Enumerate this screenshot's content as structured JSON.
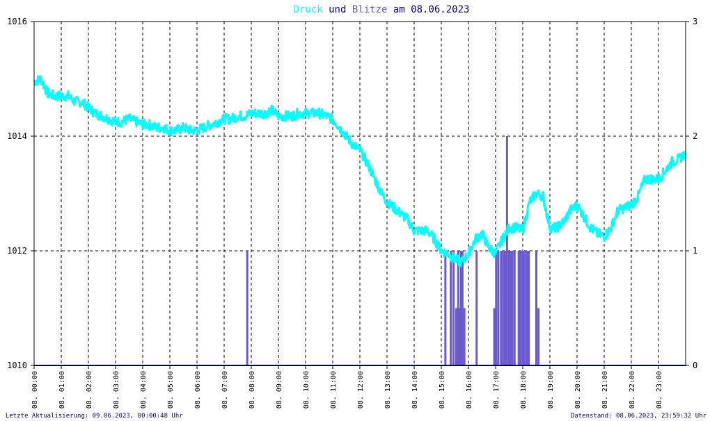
{
  "title": {
    "word1": "Druck",
    "word2": " und ",
    "word3": "Blitze",
    "word4": " am 08.06.2023",
    "colors": {
      "druck": "#00ffff",
      "blitze": "#6a5acd",
      "other": "#000080"
    }
  },
  "footer": {
    "left": "Letzte Aktualisierung: 09.06.2023, 00:00:48 Uhr",
    "right": "Datenstand: 08.06.2023, 23:59:32 Uhr"
  },
  "chart_data": {
    "type": "line",
    "title": "Druck und Blitze am 08.06.2023",
    "x_ticks": [
      "08. 00:00",
      "08. 01:00",
      "08. 02:00",
      "08. 03:00",
      "08. 04:00",
      "08. 05:00",
      "08. 06:00",
      "08. 07:00",
      "08. 08:00",
      "08. 09:00",
      "08. 10:00",
      "08. 11:00",
      "08. 12:00",
      "08. 13:00",
      "08. 14:00",
      "08. 15:00",
      "08. 16:00",
      "08. 17:00",
      "08. 18:00",
      "08. 19:00",
      "08. 20:00",
      "08. 21:00",
      "08. 22:00",
      "08. 23:00"
    ],
    "y_left": {
      "ylim": [
        1010,
        1016
      ],
      "ticks": [
        "1010",
        "1012",
        "1014",
        "1016"
      ]
    },
    "y_right": {
      "ylim": [
        0,
        3
      ],
      "ticks": [
        "0",
        "1",
        "2",
        "3"
      ]
    },
    "grid": true,
    "series": [
      {
        "name": "Druck",
        "axis": "left",
        "color": "#00ffff",
        "x_hours": [
          0.0,
          0.25,
          0.5,
          0.75,
          1.0,
          1.25,
          1.5,
          1.75,
          2.0,
          2.25,
          2.5,
          2.75,
          3.0,
          3.25,
          3.5,
          3.75,
          4.0,
          4.25,
          4.5,
          4.75,
          5.0,
          5.25,
          5.5,
          5.75,
          6.0,
          6.25,
          6.5,
          6.75,
          7.0,
          7.25,
          7.5,
          7.75,
          8.0,
          8.25,
          8.5,
          8.75,
          9.0,
          9.25,
          9.5,
          9.75,
          10.0,
          10.25,
          10.5,
          10.75,
          11.0,
          11.25,
          11.5,
          11.75,
          12.0,
          12.25,
          12.5,
          12.75,
          13.0,
          13.25,
          13.5,
          13.75,
          14.0,
          14.25,
          14.5,
          14.75,
          15.0,
          15.25,
          15.5,
          15.75,
          16.0,
          16.25,
          16.5,
          16.75,
          17.0,
          17.25,
          17.5,
          17.75,
          18.0,
          18.25,
          18.5,
          18.75,
          19.0,
          19.25,
          19.5,
          19.75,
          20.0,
          20.25,
          20.5,
          20.75,
          21.0,
          21.25,
          21.5,
          21.75,
          22.0,
          22.25,
          22.5,
          22.75,
          23.0,
          23.25,
          23.5,
          23.75,
          24.0
        ],
        "values": [
          1014.95,
          1015.0,
          1014.75,
          1014.7,
          1014.7,
          1014.7,
          1014.6,
          1014.6,
          1014.5,
          1014.4,
          1014.35,
          1014.3,
          1014.25,
          1014.25,
          1014.3,
          1014.25,
          1014.2,
          1014.2,
          1014.15,
          1014.15,
          1014.1,
          1014.1,
          1014.15,
          1014.1,
          1014.1,
          1014.15,
          1014.2,
          1014.25,
          1014.3,
          1014.3,
          1014.35,
          1014.35,
          1014.4,
          1014.4,
          1014.4,
          1014.45,
          1014.35,
          1014.35,
          1014.35,
          1014.4,
          1014.4,
          1014.4,
          1014.4,
          1014.35,
          1014.3,
          1014.15,
          1014.0,
          1013.85,
          1013.75,
          1013.55,
          1013.3,
          1013.05,
          1012.85,
          1012.75,
          1012.65,
          1012.55,
          1012.35,
          1012.35,
          1012.35,
          1012.2,
          1012.0,
          1011.95,
          1011.85,
          1011.8,
          1011.95,
          1012.2,
          1012.3,
          1012.05,
          1011.95,
          1012.2,
          1012.4,
          1012.4,
          1012.35,
          1012.85,
          1013.0,
          1012.95,
          1012.4,
          1012.4,
          1012.5,
          1012.7,
          1012.8,
          1012.6,
          1012.4,
          1012.3,
          1012.25,
          1012.4,
          1012.7,
          1012.75,
          1012.8,
          1012.95,
          1013.25,
          1013.25,
          1013.25,
          1013.4,
          1013.55,
          1013.6,
          1013.7
        ]
      },
      {
        "name": "Blitze",
        "axis": "right",
        "color": "#6a5acd",
        "x_hours": [
          7.85,
          15.15,
          15.35,
          15.45,
          15.55,
          15.62,
          15.68,
          15.72,
          15.78,
          15.85,
          16.3,
          16.95,
          17.02,
          17.1,
          17.2,
          17.28,
          17.35,
          17.42,
          17.5,
          17.55,
          17.62,
          17.7,
          17.85,
          17.92,
          18.0,
          18.07,
          18.15,
          18.22,
          18.5,
          18.58
        ],
        "values": [
          1,
          1,
          1,
          1,
          0.5,
          1,
          0.5,
          1,
          1,
          0.5,
          1,
          0.5,
          1,
          1,
          1,
          1,
          1,
          2,
          1,
          1,
          1,
          1,
          1,
          1,
          1,
          1,
          1,
          1,
          1,
          0.5
        ]
      }
    ]
  }
}
